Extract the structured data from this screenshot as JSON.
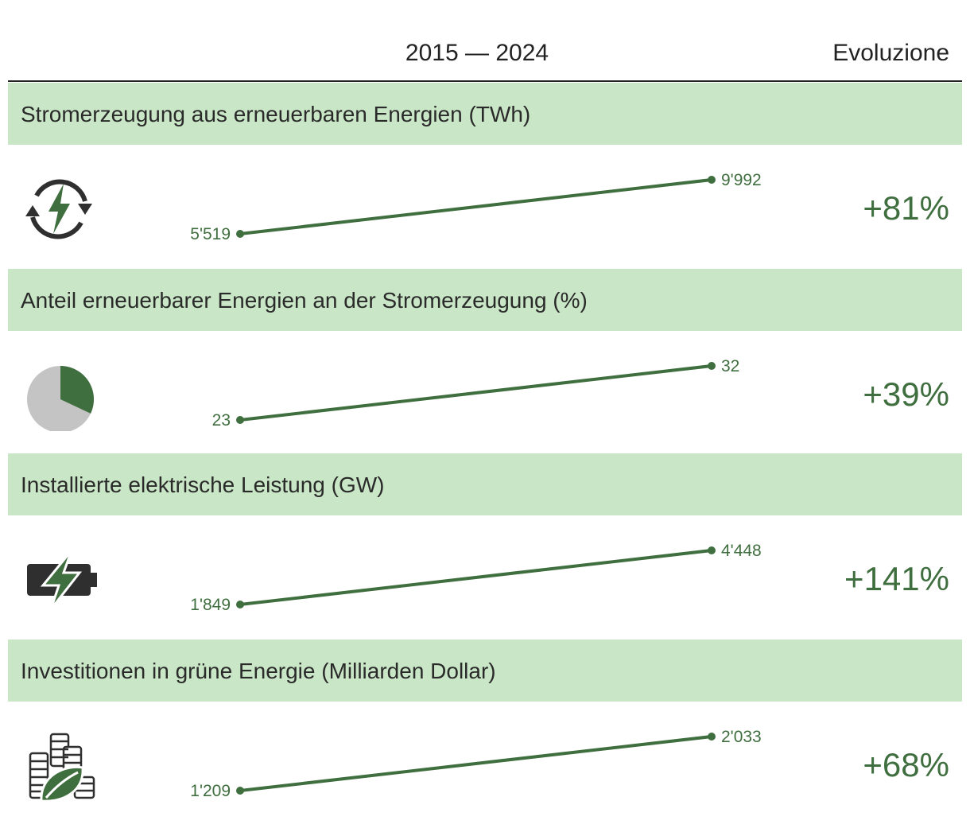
{
  "header": {
    "years": "2015 — 2024",
    "evolution": "Evoluzione"
  },
  "colors": {
    "band": "#c9e7c6",
    "accent": "#3f6e3f",
    "icon_dark": "#2f2f2f",
    "pie_grey": "#c4c4c4"
  },
  "chart_data": {
    "type": "line",
    "x": [
      "2015",
      "2024"
    ],
    "series": [
      {
        "name": "Stromerzeugung aus erneuerbaren Energien (TWh)",
        "values": [
          5519,
          9992
        ],
        "labels": [
          "5'519",
          "9'992"
        ],
        "change": "+81%",
        "icon": "renewable-energy-cycle-icon"
      },
      {
        "name": "Anteil erneuerbarer Energien an der Stromerzeugung (%)",
        "values": [
          23,
          32
        ],
        "labels": [
          "23",
          "32"
        ],
        "change": "+39%",
        "icon": "pie-share-icon",
        "share": 0.32
      },
      {
        "name": "Installierte elektrische Leistung (GW)",
        "values": [
          1849,
          4448
        ],
        "labels": [
          "1'849",
          "4'448"
        ],
        "change": "+141%",
        "icon": "battery-charging-icon"
      },
      {
        "name": "Investitionen in grüne Energie (Milliarden Dollar)",
        "values": [
          1209,
          2033
        ],
        "labels": [
          "1'209",
          "2'033"
        ],
        "change": "+68%",
        "icon": "coins-leaf-icon"
      }
    ]
  }
}
